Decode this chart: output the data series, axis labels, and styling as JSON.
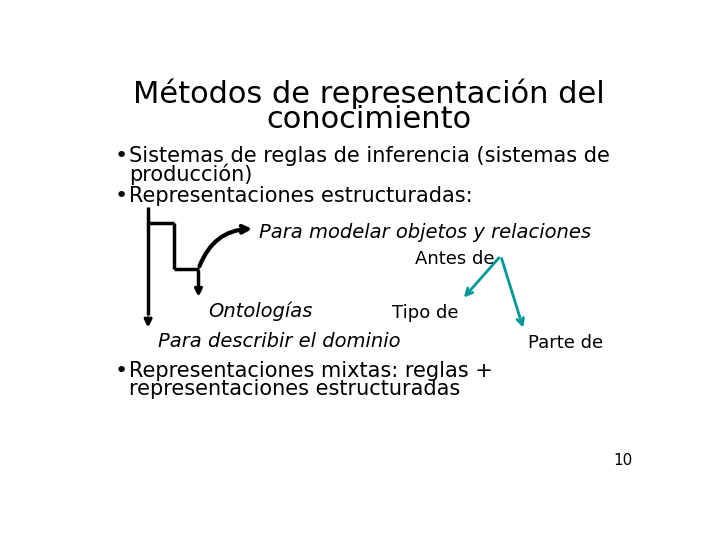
{
  "title_line1": "Métodos de representación del",
  "title_line2": "conocimiento",
  "title_fontsize": 22,
  "title_color": "#000000",
  "bg_color": "#ffffff",
  "bullet1_line1": "Sistemas de reglas de inferencia (sistemas de",
  "bullet1_line2": "producción)",
  "bullet2": "Representaciones estructuradas:",
  "italic1": "Para modelar objetos y relaciones",
  "italic2": "Ontologías",
  "italic3": "Para describir el dominio",
  "label_antes": "Antes de",
  "label_tipo": "Tipo de",
  "label_parte": "Parte de",
  "bullet3_line1": "Representaciones mixtas: reglas +",
  "bullet3_line2": "representaciones estructuradas",
  "body_fontsize": 15,
  "italic_fontsize": 14,
  "label_fontsize": 13,
  "teal_color": "#009999",
  "black_color": "#000000",
  "page_number": "10",
  "lw_bracket": 2.5,
  "lw_teal": 2.0
}
